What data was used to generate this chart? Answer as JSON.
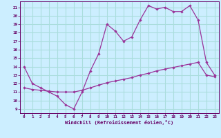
{
  "xlabel": "Windchill (Refroidissement éolien,°C)",
  "background_color": "#cceeff",
  "line_color": "#993399",
  "grid_color": "#aadddd",
  "x_ticks": [
    0,
    1,
    2,
    3,
    4,
    5,
    6,
    7,
    8,
    9,
    10,
    11,
    12,
    13,
    14,
    15,
    16,
    17,
    18,
    19,
    20,
    21,
    22,
    23
  ],
  "y_ticks": [
    9,
    10,
    11,
    12,
    13,
    14,
    15,
    16,
    17,
    18,
    19,
    20,
    21
  ],
  "xlim": [
    -0.5,
    23.5
  ],
  "ylim": [
    8.5,
    21.7
  ],
  "line1_x": [
    0,
    1,
    2,
    3,
    4,
    5,
    6,
    7,
    8,
    9,
    10,
    11,
    12,
    13,
    14,
    15,
    16,
    17,
    18,
    19,
    20,
    21,
    22,
    23
  ],
  "line1_y": [
    14.0,
    12.0,
    11.5,
    11.0,
    10.5,
    9.5,
    9.0,
    11.0,
    13.5,
    15.5,
    19.0,
    18.2,
    17.0,
    17.5,
    19.5,
    21.2,
    20.8,
    21.0,
    20.5,
    20.5,
    21.2,
    19.5,
    14.5,
    13.0
  ],
  "line2_x": [
    0,
    1,
    2,
    3,
    4,
    5,
    6,
    7,
    8,
    9,
    10,
    11,
    12,
    13,
    14,
    15,
    16,
    17,
    18,
    19,
    20,
    21,
    22,
    23
  ],
  "line2_y": [
    11.5,
    11.3,
    11.2,
    11.1,
    11.0,
    11.0,
    11.0,
    11.2,
    11.5,
    11.8,
    12.1,
    12.3,
    12.5,
    12.7,
    13.0,
    13.2,
    13.5,
    13.7,
    13.9,
    14.1,
    14.3,
    14.5,
    13.0,
    12.8
  ]
}
